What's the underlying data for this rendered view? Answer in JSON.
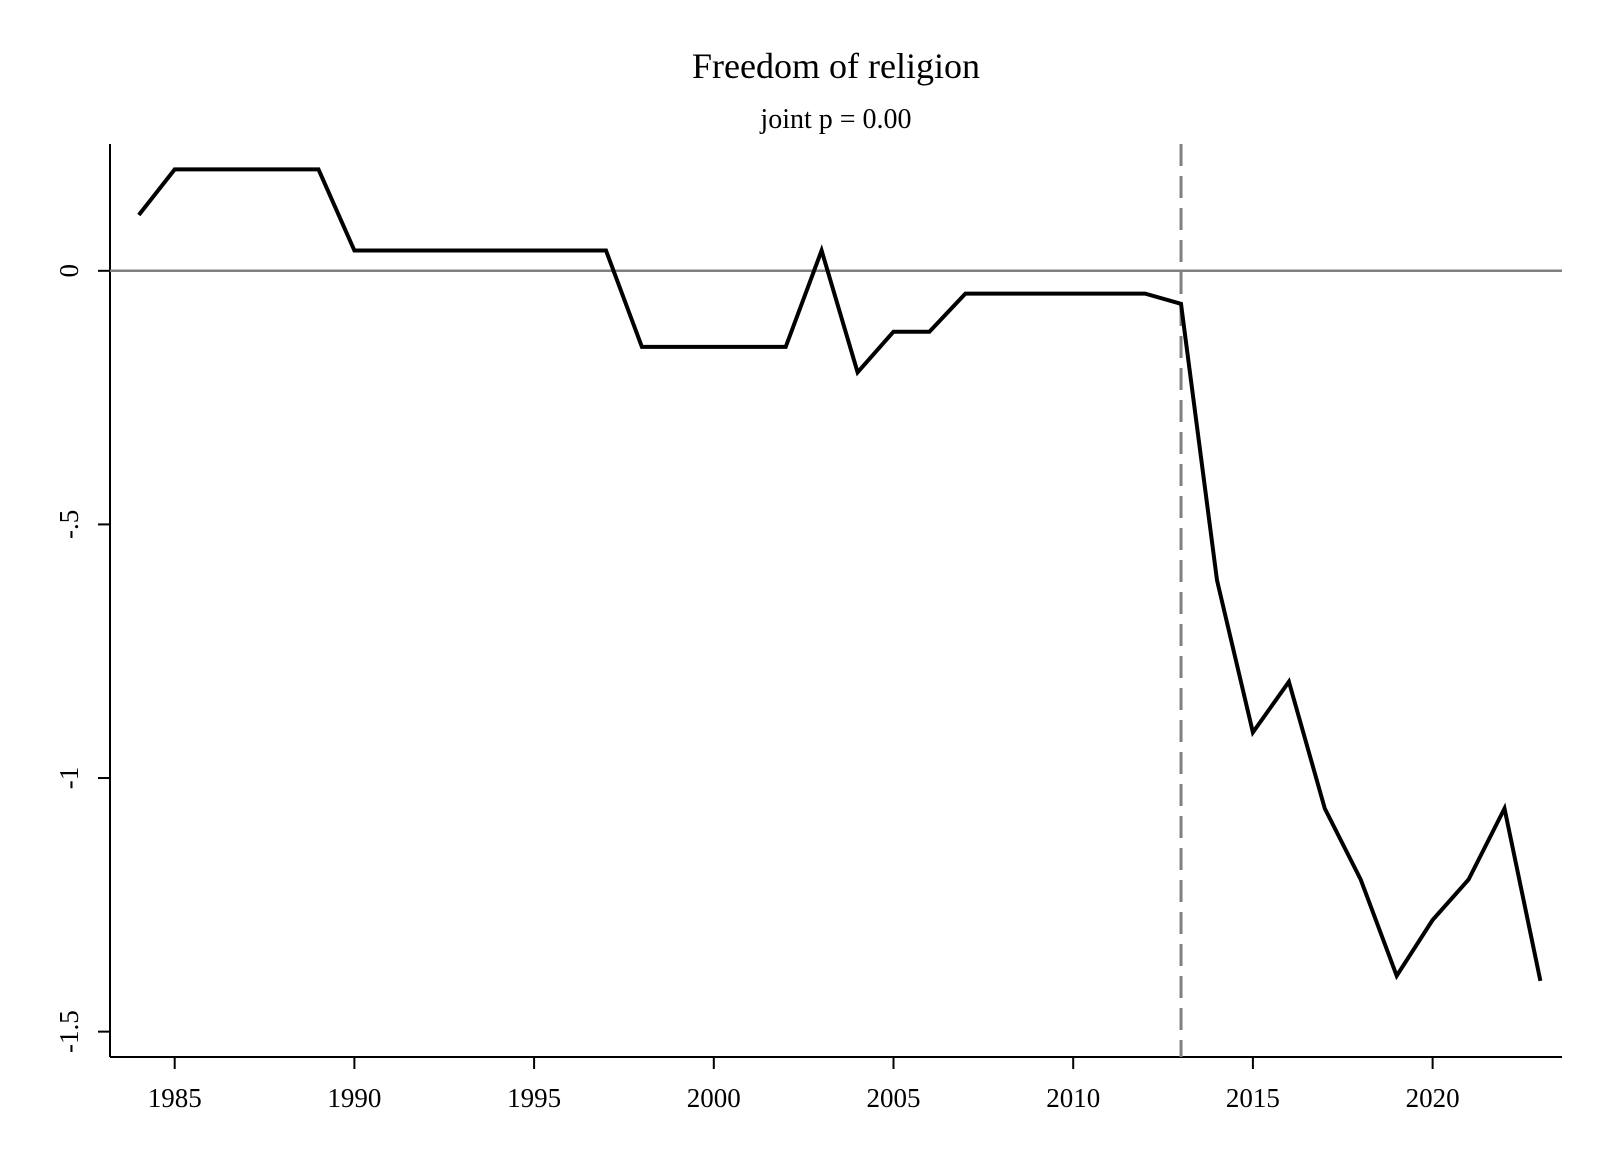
{
  "chart_data": {
    "type": "line",
    "title": "Freedom of religion",
    "subtitle": "joint p = 0.00",
    "xlabel": "",
    "ylabel": "",
    "xlim": [
      1983.2,
      2023.6
    ],
    "ylim": [
      -1.55,
      0.25
    ],
    "x_ticks": [
      1985,
      1990,
      1995,
      2000,
      2005,
      2010,
      2015,
      2020
    ],
    "y_ticks": [
      0,
      -0.5,
      -1,
      -1.5
    ],
    "x_tick_labels": [
      "1985",
      "1990",
      "1995",
      "2000",
      "2005",
      "2010",
      "2015",
      "2020"
    ],
    "y_tick_labels": [
      "0",
      "-.5",
      "-1",
      "-1.5"
    ],
    "reference_line_y": 0,
    "event_line_x": 2013,
    "grid": false,
    "series": [
      {
        "x": [
          1984,
          1985,
          1986,
          1987,
          1988,
          1989,
          1990,
          1991,
          1992,
          1993,
          1994,
          1995,
          1996,
          1997,
          1998,
          1999,
          2000,
          2001,
          2002,
          2003,
          2004,
          2005,
          2006,
          2007,
          2008,
          2009,
          2010,
          2011,
          2012,
          2013,
          2014,
          2015,
          2016,
          2017,
          2018,
          2019,
          2020,
          2021,
          2022,
          2023
        ],
        "values": [
          0.11,
          0.2,
          0.2,
          0.2,
          0.2,
          0.2,
          0.04,
          0.04,
          0.04,
          0.04,
          0.04,
          0.04,
          0.04,
          0.04,
          -0.15,
          -0.15,
          -0.15,
          -0.15,
          -0.15,
          0.04,
          -0.2,
          -0.12,
          -0.12,
          -0.045,
          -0.045,
          -0.045,
          -0.045,
          -0.045,
          -0.045,
          -0.065,
          -0.61,
          -0.91,
          -0.81,
          -1.06,
          -1.2,
          -1.39,
          -1.28,
          -1.2,
          -1.06,
          -1.4
        ],
        "color": "#000000"
      }
    ],
    "colors": {
      "series": "#000000",
      "reference_line": "#808080",
      "event_line": "#808080",
      "axis": "#000000"
    }
  }
}
